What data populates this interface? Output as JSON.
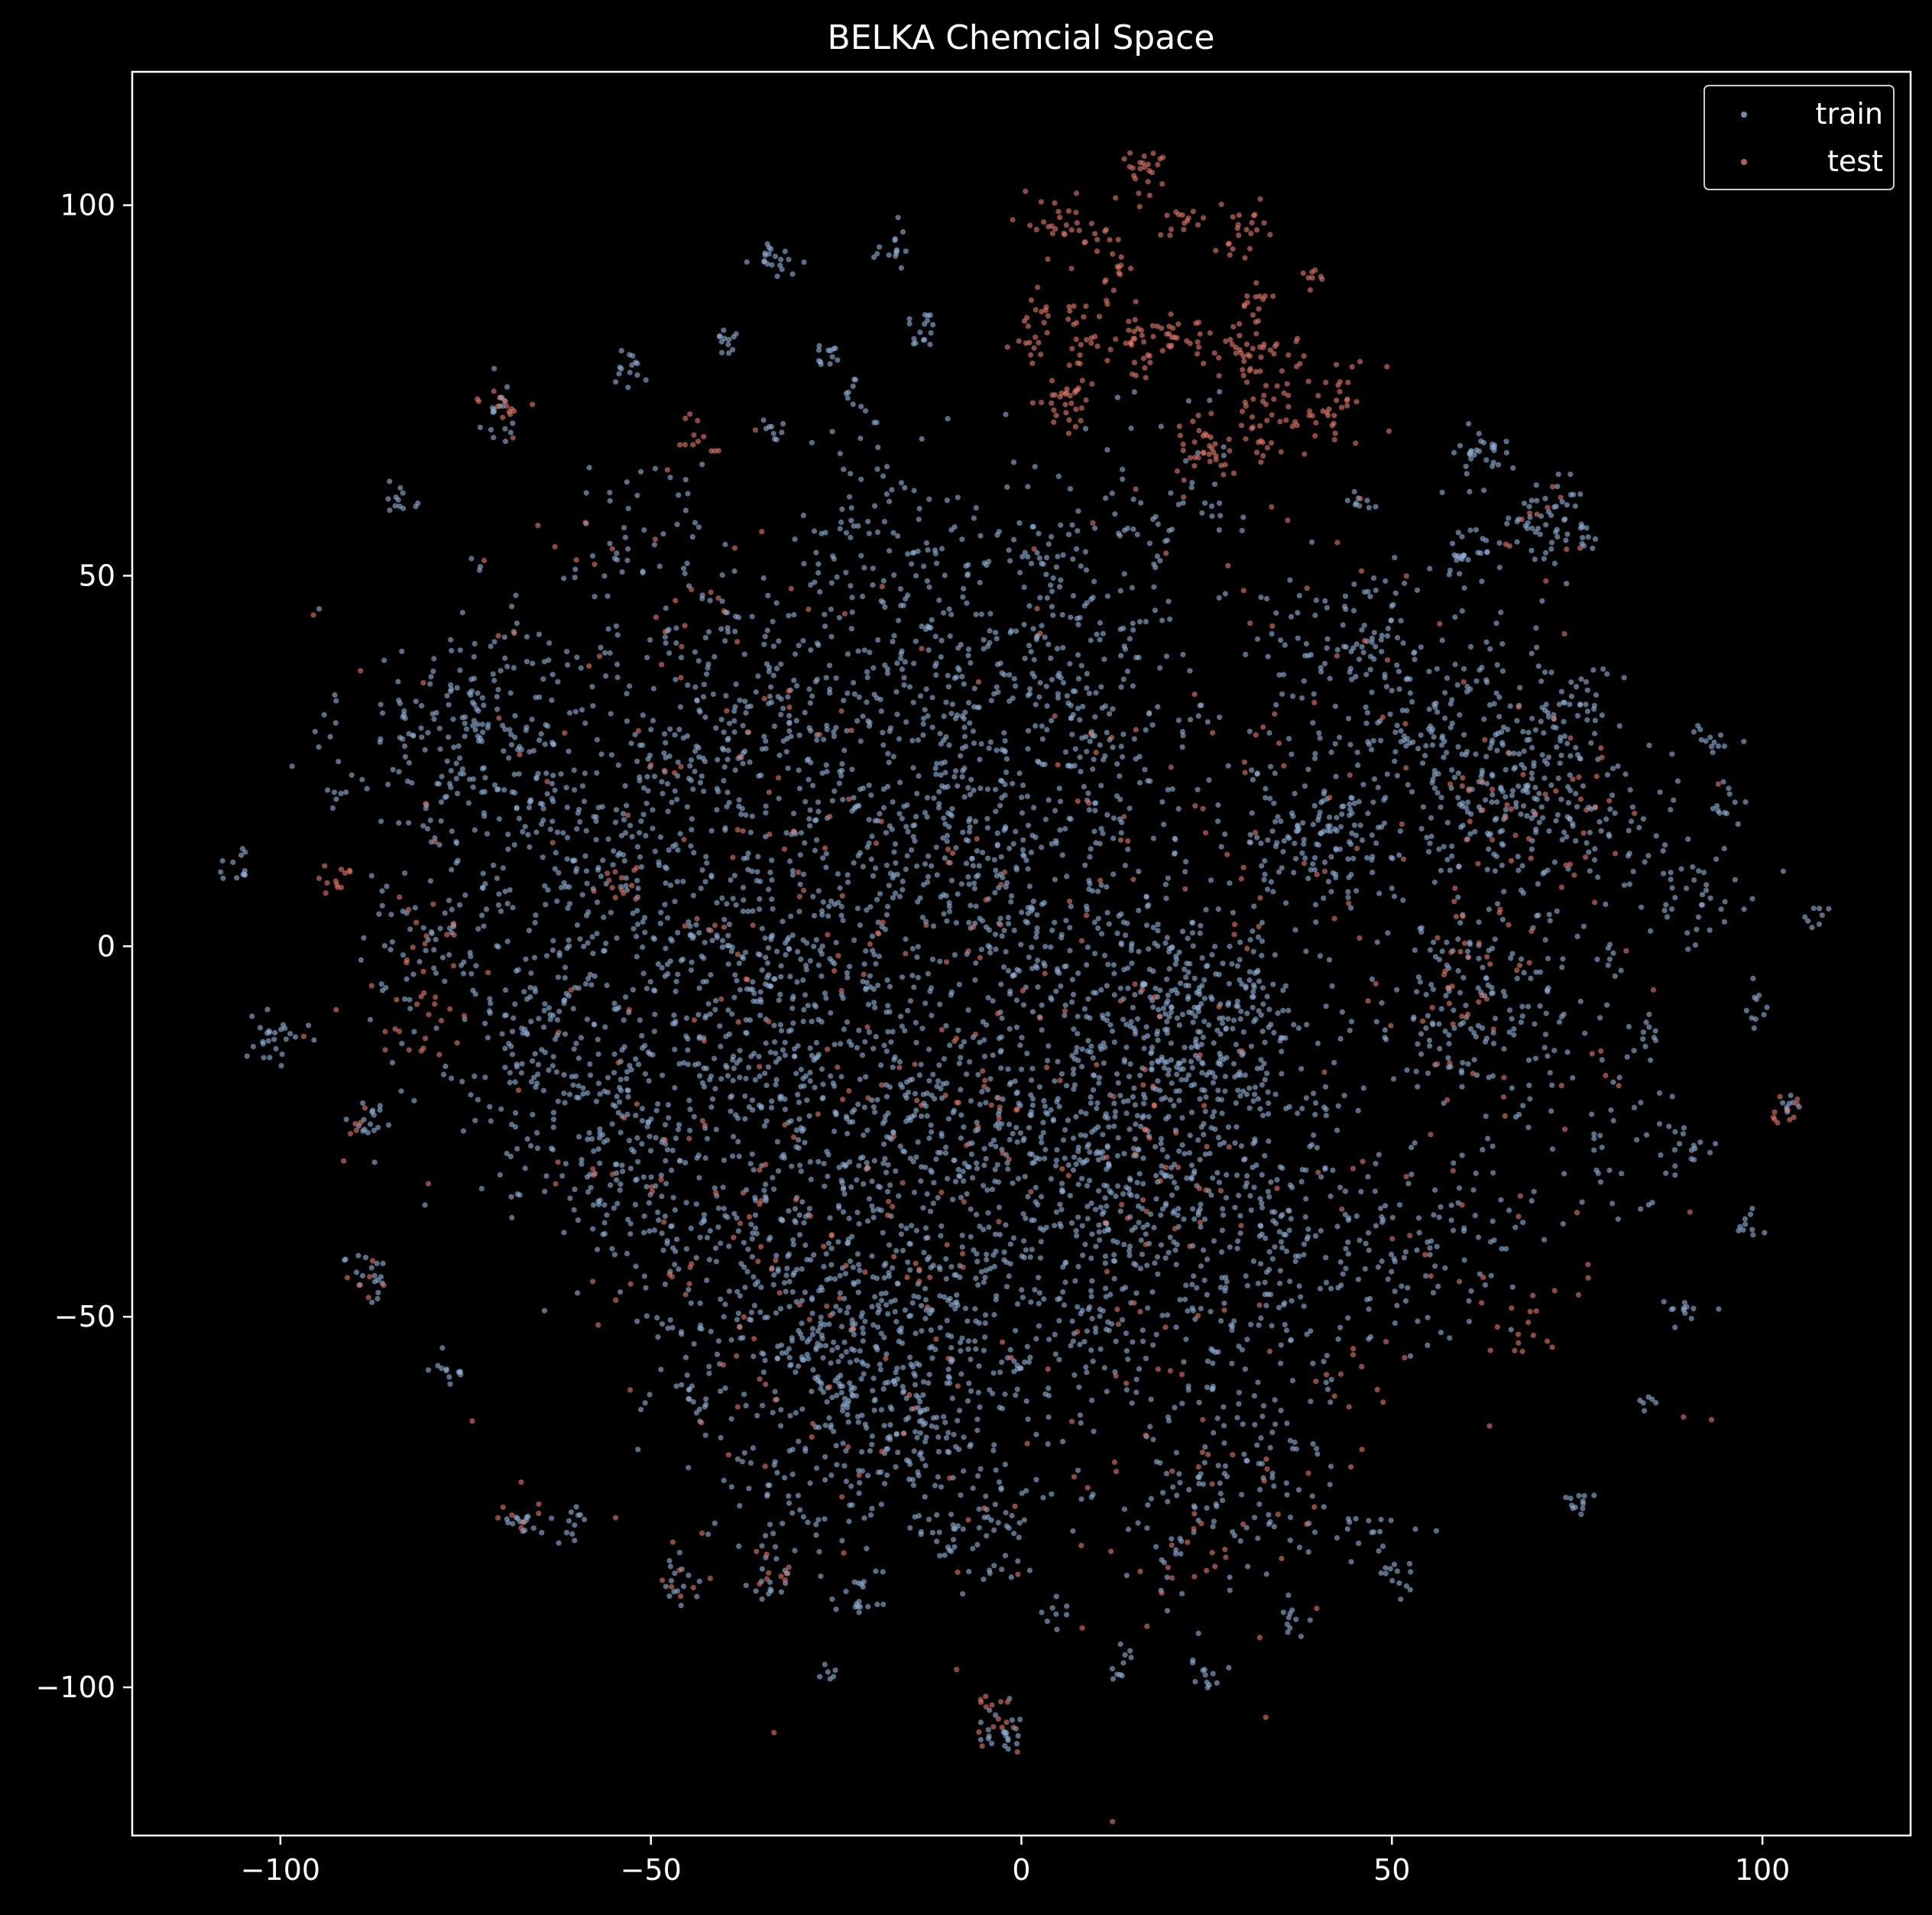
{
  "chart_data": {
    "type": "scatter",
    "title": "BELKA Chemcial Space",
    "xlabel": "",
    "ylabel": "",
    "xlim": [
      -120,
      120
    ],
    "ylim": [
      -120,
      118
    ],
    "x_ticks": [
      -100,
      -50,
      0,
      50,
      100
    ],
    "x_tick_labels": [
      "−100",
      "−50",
      "0",
      "50",
      "100"
    ],
    "y_ticks": [
      -100,
      -50,
      0,
      50,
      100
    ],
    "y_tick_labels": [
      "−100",
      "−50",
      "0",
      "50",
      "100"
    ],
    "grid": false,
    "legend_position": "top-right",
    "background": "#000000",
    "series": [
      {
        "name": "train",
        "color": "#8fb0d6",
        "clusters": [
          [
            -73,
            28,
            9,
            260
          ],
          [
            -40,
            30,
            11,
            260
          ],
          [
            -15,
            40,
            10,
            240
          ],
          [
            10,
            30,
            9,
            180
          ],
          [
            -55,
            5,
            10,
            220
          ],
          [
            -30,
            0,
            12,
            260
          ],
          [
            -5,
            5,
            10,
            200
          ],
          [
            15,
            -5,
            10,
            240
          ],
          [
            25,
            -12,
            7,
            160
          ],
          [
            -60,
            -20,
            9,
            160
          ],
          [
            -35,
            -20,
            10,
            220
          ],
          [
            -15,
            -25,
            10,
            220
          ],
          [
            5,
            -25,
            10,
            200
          ],
          [
            30,
            -25,
            9,
            160
          ],
          [
            -35,
            -50,
            9,
            220
          ],
          [
            -20,
            -55,
            8,
            200
          ],
          [
            -5,
            -50,
            10,
            200
          ],
          [
            -15,
            -68,
            7,
            120
          ],
          [
            15,
            -45,
            9,
            140
          ],
          [
            30,
            -45,
            8,
            120
          ],
          [
            40,
            15,
            6,
            150
          ],
          [
            60,
            25,
            9,
            220
          ],
          [
            70,
            20,
            8,
            160
          ],
          [
            62,
            -10,
            7,
            160
          ],
          [
            45,
            40,
            7,
            120
          ],
          [
            72,
            57,
            3,
            60
          ],
          [
            62,
            66,
            2,
            30
          ],
          [
            60,
            53,
            2,
            24
          ],
          [
            45,
            -40,
            7,
            80
          ],
          [
            60,
            -40,
            6,
            60
          ],
          [
            30,
            -70,
            6,
            80
          ],
          [
            10,
            -30,
            8,
            80
          ],
          [
            -10,
            20,
            8,
            120
          ],
          [
            5,
            50,
            8,
            100
          ],
          [
            -50,
            -35,
            7,
            80
          ],
          [
            -80,
            0,
            6,
            70
          ],
          [
            -68,
            -15,
            6,
            50
          ],
          [
            80,
            -25,
            6,
            40
          ],
          [
            90,
            10,
            5,
            35
          ],
          [
            -50,
            55,
            6,
            40
          ],
          [
            -20,
            60,
            6,
            40
          ],
          [
            20,
            60,
            6,
            40
          ],
          [
            -5,
            -80,
            4,
            40
          ],
          [
            20,
            -80,
            5,
            40
          ],
          [
            45,
            -80,
            5,
            30
          ],
          [
            -35,
            -75,
            5,
            40
          ],
          [
            -33,
            93,
            1.6,
            20
          ],
          [
            -17,
            95,
            1.4,
            14
          ],
          [
            -13,
            83,
            1.4,
            16
          ],
          [
            -40,
            81,
            1.2,
            12
          ],
          [
            -26,
            80,
            1.2,
            12
          ],
          [
            -53,
            78,
            1.4,
            14
          ],
          [
            -22,
            74,
            1.2,
            10
          ],
          [
            -34,
            70,
            1.0,
            8
          ],
          [
            -84,
            60,
            1.2,
            12
          ],
          [
            -70,
            72,
            2.0,
            18
          ],
          [
            -92,
            20,
            0.8,
            6
          ],
          [
            -106,
            11,
            1.2,
            12
          ],
          [
            -101,
            -12,
            2.0,
            26
          ],
          [
            -88,
            -24,
            1.4,
            16
          ],
          [
            -88,
            -44,
            1.6,
            18
          ],
          [
            -77,
            -57,
            1.2,
            12
          ],
          [
            -67,
            -78,
            1.4,
            14
          ],
          [
            -61,
            -78,
            1.4,
            12
          ],
          [
            -46,
            -86,
            1.4,
            14
          ],
          [
            -34,
            -86,
            1.4,
            14
          ],
          [
            -22,
            -87,
            2.0,
            18
          ],
          [
            -26,
            -98,
            0.8,
            6
          ],
          [
            -3,
            -106,
            2.0,
            22
          ],
          [
            4,
            -91,
            1.0,
            8
          ],
          [
            13,
            -97,
            1.2,
            10
          ],
          [
            25,
            -99,
            1.4,
            12
          ],
          [
            36,
            -91,
            1.2,
            10
          ],
          [
            50,
            -85,
            1.2,
            10
          ],
          [
            75,
            -75,
            1.4,
            12
          ],
          [
            85,
            -62,
            0.8,
            6
          ],
          [
            89,
            -49,
            1.4,
            12
          ],
          [
            98,
            -38,
            1.2,
            10
          ],
          [
            89,
            -27,
            1.6,
            14
          ],
          [
            99,
            -8,
            1.2,
            10
          ],
          [
            103,
            -21,
            1.0,
            8
          ],
          [
            93,
            4,
            1.4,
            12
          ],
          [
            107,
            4,
            1.0,
            8
          ],
          [
            93,
            28,
            1.2,
            12
          ],
          [
            95,
            18,
            1.4,
            12
          ],
          [
            75,
            32,
            3.0,
            30
          ],
          [
            46,
            60,
            1.2,
            8
          ],
          [
            80,
            -2,
            1.2,
            8
          ],
          [
            84,
            -12,
            1.4,
            10
          ]
        ]
      },
      {
        "name": "test",
        "color": "#e0786a",
        "clusters": [
          [
            17,
            104,
            1.8,
            24
          ],
          [
            4,
            97,
            2.2,
            24
          ],
          [
            22,
            98,
            1.4,
            14
          ],
          [
            30,
            97,
            2.0,
            22
          ],
          [
            11,
            95,
            1.6,
            12
          ],
          [
            39,
            90,
            0.8,
            8
          ],
          [
            32,
            87,
            1.4,
            12
          ],
          [
            2,
            86,
            1.2,
            10
          ],
          [
            14,
            90,
            1.2,
            10
          ],
          [
            9,
            84,
            2.0,
            20
          ],
          [
            15,
            81,
            2.4,
            30
          ],
          [
            20,
            83,
            1.6,
            14
          ],
          [
            26,
            82,
            1.8,
            18
          ],
          [
            1,
            81,
            1.4,
            12
          ],
          [
            6,
            75,
            2.2,
            34
          ],
          [
            30,
            80,
            2.0,
            18
          ],
          [
            35,
            79,
            2.4,
            20
          ],
          [
            42,
            74,
            2.8,
            34
          ],
          [
            24,
            68,
            2.4,
            34
          ],
          [
            33,
            70,
            2.6,
            34
          ],
          [
            -71,
            72,
            1.6,
            14
          ],
          [
            -44,
            69,
            1.4,
            12
          ],
          [
            -92,
            9,
            1.4,
            12
          ],
          [
            -54,
            9,
            1.4,
            10
          ],
          [
            -82,
            -10,
            3.0,
            20
          ],
          [
            -80,
            0,
            3.0,
            14
          ],
          [
            62,
            -3,
            4.0,
            30
          ],
          [
            70,
            20,
            6.0,
            40
          ],
          [
            103,
            -22,
            1.2,
            10
          ],
          [
            68,
            -52,
            2.0,
            12
          ],
          [
            -4,
            -104,
            2.0,
            14
          ],
          [
            -67,
            -77,
            1.6,
            8
          ],
          [
            -30,
            0,
            25,
            120
          ],
          [
            10,
            -20,
            25,
            120
          ],
          [
            -25,
            -50,
            20,
            100
          ],
          [
            40,
            30,
            20,
            60
          ],
          [
            60,
            -30,
            15,
            40
          ],
          [
            -50,
            40,
            15,
            40
          ],
          [
            20,
            -75,
            15,
            40
          ],
          [
            72,
            57,
            3,
            10
          ],
          [
            -90,
            -25,
            2,
            6
          ],
          [
            -88,
            -45,
            2,
            6
          ],
          [
            -45,
            -85,
            2,
            6
          ],
          [
            -33,
            -86,
            2,
            8
          ],
          [
            25,
            -82,
            3,
            10
          ],
          [
            45,
            -60,
            4,
            10
          ]
        ]
      }
    ]
  }
}
